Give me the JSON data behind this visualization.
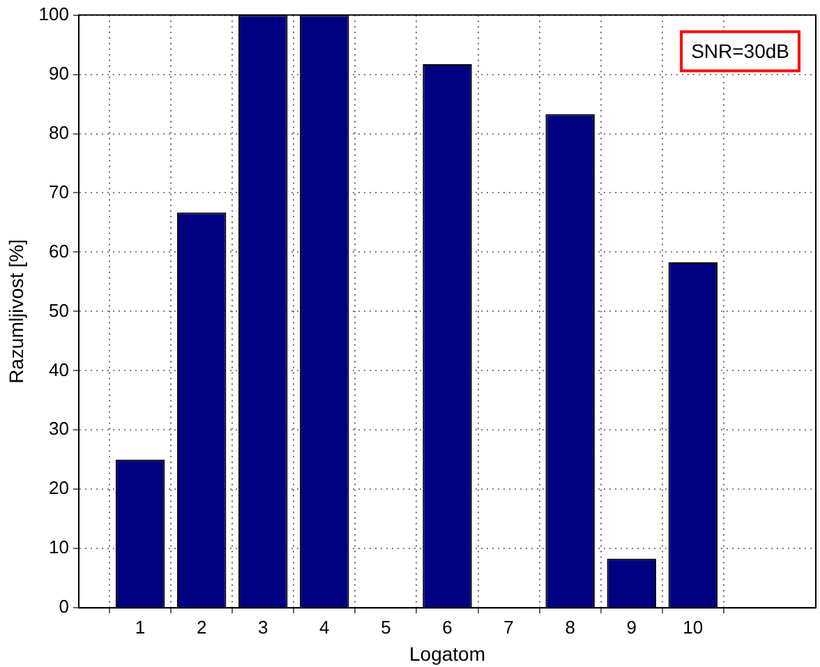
{
  "chart_data": {
    "type": "bar",
    "xlabel": "Logatom",
    "ylabel": "Razumljivost [%]",
    "x": [
      1,
      2,
      3,
      4,
      5,
      6,
      7,
      8,
      9,
      10
    ],
    "values": [
      25,
      66.7,
      100,
      100,
      0,
      91.7,
      0,
      83.3,
      8.3,
      58.3
    ],
    "color": "#000080",
    "xlim": [
      0,
      12
    ],
    "xticks": [
      1,
      2,
      3,
      4,
      5,
      6,
      7,
      8,
      9,
      10
    ],
    "ylim": [
      0,
      100
    ],
    "yticks": [
      0,
      10,
      20,
      30,
      40,
      50,
      60,
      70,
      80,
      90,
      100
    ],
    "grid": true,
    "legend": false,
    "annotations": [
      "SNR=30dB"
    ]
  }
}
